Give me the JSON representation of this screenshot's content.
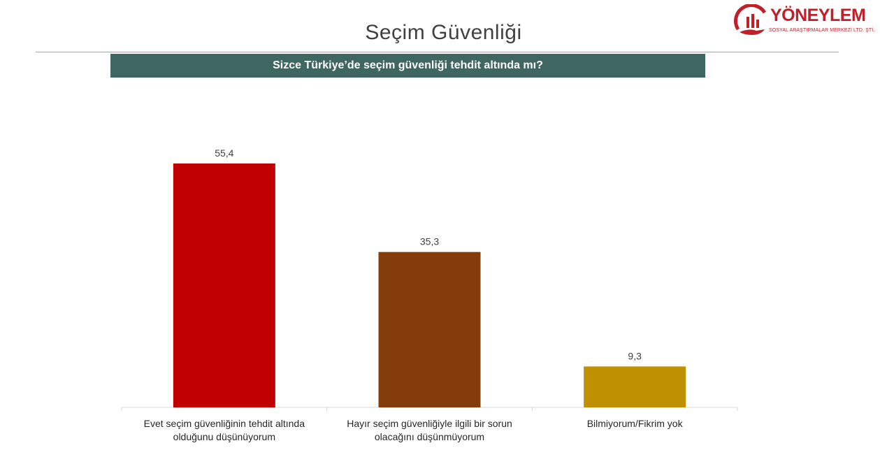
{
  "page": {
    "title": "Seçim Güvenliği",
    "question": "Sizce Türkiye’de seçim güvenliği tehdit altında mı?"
  },
  "logo": {
    "name": "YÖNEYLEM",
    "subtitle": "SOSYAL ARAŞTIRMALAR MERKEZİ LTD. ŞTİ.",
    "icon": "bar-chart-hand-logo-icon",
    "color": "#c0202a"
  },
  "colors": {
    "header_band": "#3f6660"
  },
  "chart_data": {
    "type": "bar",
    "title": "",
    "xlabel": "",
    "ylabel": "",
    "ylim": [
      0,
      60
    ],
    "grid": false,
    "legend": "none",
    "categories": [
      "Evet seçim güvenliğinin tehdit altında olduğunu düşünüyorum",
      "Hayır seçim güvenliğiyle ilgili bir sorun olacağını düşünmüyorum",
      "Bilmiyorum/Fikrim yok"
    ],
    "values": [
      55.4,
      35.3,
      9.3
    ],
    "value_labels": [
      "55,4",
      "35,3",
      "9,3"
    ],
    "colors": [
      "#c00000",
      "#843c0c",
      "#bf9000"
    ]
  }
}
